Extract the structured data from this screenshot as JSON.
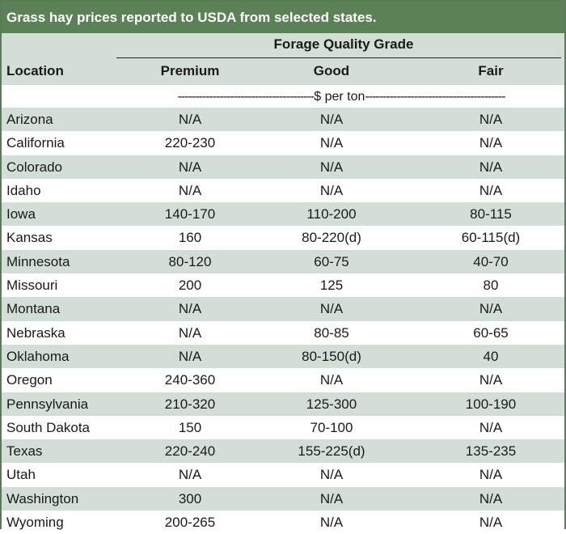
{
  "title": "Grass hay prices reported to USDA from selected states.",
  "header": {
    "location": "Location",
    "group": "Forage Quality Grade",
    "columns": [
      "Premium",
      "Good",
      "Fair"
    ]
  },
  "units": {
    "left_dashes": "---------------------------------------",
    "label": "$ per ton",
    "right_dashes": "----------------------------------------"
  },
  "colors": {
    "title_bg": "#5d8157",
    "shade": "#d3dfd6"
  },
  "rows": [
    {
      "location": "Arizona",
      "premium": "N/A",
      "good": "N/A",
      "fair": "N/A"
    },
    {
      "location": "California",
      "premium": "220-230",
      "good": "N/A",
      "fair": "N/A"
    },
    {
      "location": "Colorado",
      "premium": "N/A",
      "good": "N/A",
      "fair": "N/A"
    },
    {
      "location": "Idaho",
      "premium": "N/A",
      "good": "N/A",
      "fair": "N/A"
    },
    {
      "location": "Iowa",
      "premium": "140-170",
      "good": "110-200",
      "fair": "80-115"
    },
    {
      "location": "Kansas",
      "premium": "160",
      "good": "80-220(d)",
      "fair": "60-115(d)"
    },
    {
      "location": "Minnesota",
      "premium": "80-120",
      "good": "60-75",
      "fair": "40-70"
    },
    {
      "location": "Missouri",
      "premium": "200",
      "good": "125",
      "fair": "80"
    },
    {
      "location": "Montana",
      "premium": "N/A",
      "good": "N/A",
      "fair": "N/A"
    },
    {
      "location": "Nebraska",
      "premium": "N/A",
      "good": "80-85",
      "fair": "60-65"
    },
    {
      "location": "Oklahoma",
      "premium": "N/A",
      "good": "80-150(d)",
      "fair": "40"
    },
    {
      "location": "Oregon",
      "premium": "240-360",
      "good": "N/A",
      "fair": "N/A"
    },
    {
      "location": "Pennsylvania",
      "premium": "210-320",
      "good": "125-300",
      "fair": "100-190"
    },
    {
      "location": "South Dakota",
      "premium": "150",
      "good": "70-100",
      "fair": "N/A"
    },
    {
      "location": "Texas",
      "premium": "220-240",
      "good": "155-225(d)",
      "fair": "135-235"
    },
    {
      "location": "Utah",
      "premium": "N/A",
      "good": "N/A",
      "fair": "N/A"
    },
    {
      "location": "Washington",
      "premium": "300",
      "good": "N/A",
      "fair": "N/A"
    },
    {
      "location": "Wyoming",
      "premium": "200-265",
      "good": "N/A",
      "fair": "N/A"
    }
  ]
}
